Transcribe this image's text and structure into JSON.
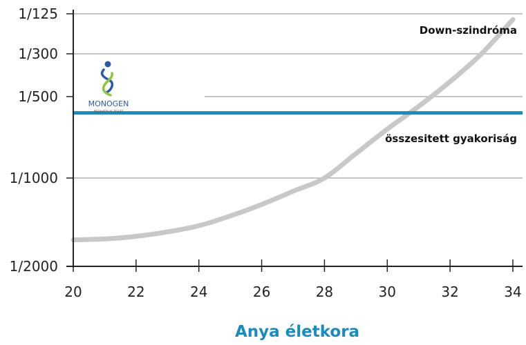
{
  "chart_data": {
    "type": "line",
    "title": "",
    "xlabel": "Anya életkora",
    "ylabel": "",
    "x_ticks": [
      20,
      22,
      24,
      26,
      28,
      30,
      32,
      34
    ],
    "y_tick_labels": [
      "1/125",
      "1/300",
      "1/500",
      "1/1000",
      "1/2000"
    ],
    "y_tick_values": [
      125,
      300,
      500,
      1000,
      2000
    ],
    "xlim": [
      20,
      34
    ],
    "grid": "horizontal",
    "series": [
      {
        "name": "Down-szindróma",
        "color": "#c8c8c8",
        "x": [
          20,
          21,
          22,
          23,
          24,
          25,
          26,
          27,
          28,
          29,
          30,
          31,
          32,
          33,
          34
        ],
        "y": [
          1700,
          1690,
          1660,
          1610,
          1540,
          1430,
          1300,
          1150,
          1000,
          850,
          700,
          560,
          430,
          300,
          150
        ]
      },
      {
        "name": "összesitett gyakoriság",
        "color": "#1a8bbf",
        "x": [
          20,
          34
        ],
        "y": [
          600,
          600
        ]
      }
    ]
  },
  "logo": {
    "name": "MONOGEN",
    "tagline": "PRENATÁLIS TESZT"
  },
  "colors": {
    "axis": "#222222",
    "grid": "#8a8a8a",
    "xlabel": "#1a8bbf"
  }
}
